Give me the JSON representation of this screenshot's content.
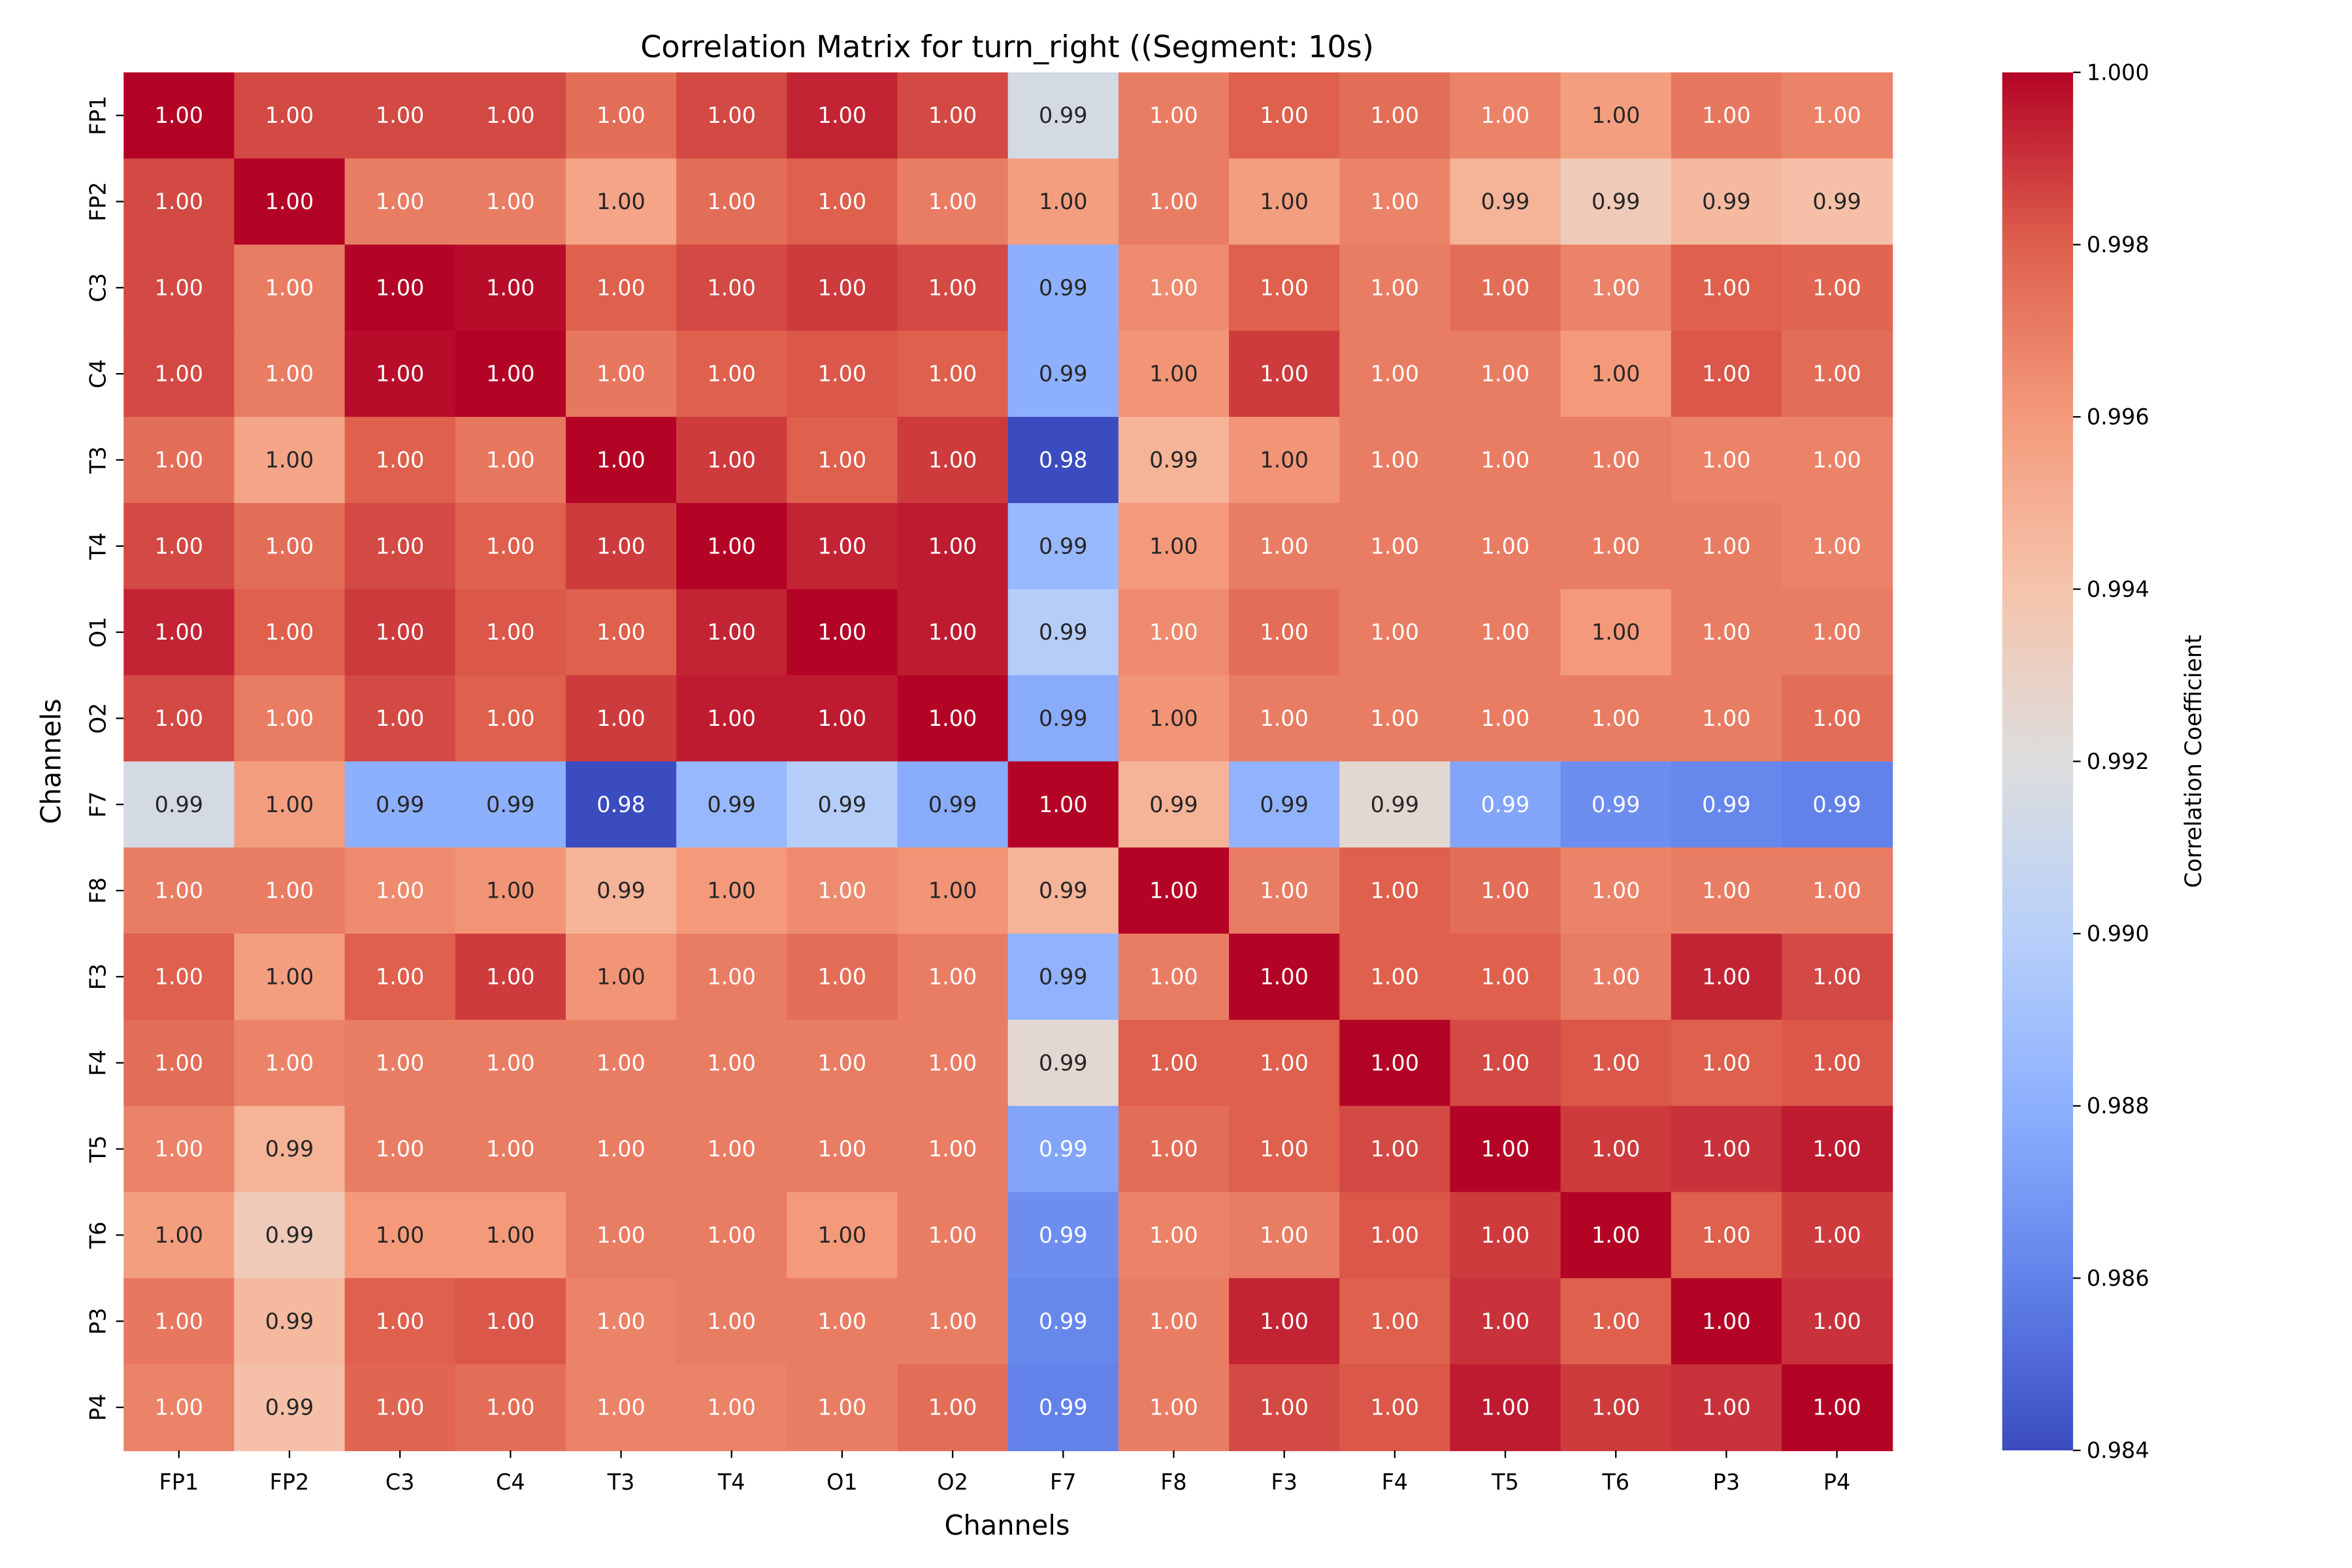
{
  "chart_data": {
    "type": "heatmap",
    "title": "Correlation Matrix for turn_right ((Segment: 10s)",
    "xlabel": "Channels",
    "ylabel": "Channels",
    "colorbar_label": "Correlation Coefficient",
    "colormap": "coolwarm",
    "vmin": 0.984,
    "vmax": 1.0,
    "colorbar_ticks": [
      0.984,
      0.986,
      0.988,
      0.99,
      0.992,
      0.994,
      0.996,
      0.998,
      1.0
    ],
    "annotation_format": "2 decimals",
    "labels": [
      "FP1",
      "FP2",
      "C3",
      "C4",
      "T3",
      "T4",
      "O1",
      "O2",
      "F7",
      "F8",
      "F3",
      "F4",
      "T5",
      "T6",
      "P3",
      "P4"
    ],
    "values": [
      [
        1.0,
        0.9985,
        0.9985,
        0.9985,
        0.9975,
        0.9985,
        0.9993,
        0.9985,
        0.9915,
        0.997,
        0.998,
        0.9975,
        0.9968,
        0.9958,
        0.9972,
        0.9968
      ],
      [
        0.9985,
        1.0,
        0.997,
        0.997,
        0.9955,
        0.9975,
        0.998,
        0.997,
        0.9958,
        0.997,
        0.9958,
        0.9968,
        0.9948,
        0.9935,
        0.9945,
        0.9942
      ],
      [
        0.9985,
        0.997,
        1.0,
        0.9998,
        0.998,
        0.9985,
        0.9988,
        0.9985,
        0.988,
        0.9965,
        0.998,
        0.997,
        0.9975,
        0.9968,
        0.998,
        0.9978
      ],
      [
        0.9985,
        0.997,
        0.9998,
        1.0,
        0.9972,
        0.998,
        0.9982,
        0.998,
        0.988,
        0.9962,
        0.9988,
        0.997,
        0.997,
        0.996,
        0.9982,
        0.9975
      ],
      [
        0.9975,
        0.9955,
        0.998,
        0.9972,
        1.0,
        0.9988,
        0.998,
        0.9988,
        0.984,
        0.9948,
        0.9962,
        0.997,
        0.997,
        0.997,
        0.9968,
        0.9968
      ],
      [
        0.9985,
        0.9975,
        0.9985,
        0.998,
        0.9988,
        1.0,
        0.9993,
        0.9995,
        0.9885,
        0.996,
        0.997,
        0.997,
        0.997,
        0.997,
        0.997,
        0.9968
      ],
      [
        0.9993,
        0.998,
        0.9988,
        0.9982,
        0.998,
        0.9993,
        1.0,
        0.9995,
        0.9898,
        0.9965,
        0.9975,
        0.997,
        0.997,
        0.996,
        0.997,
        0.997
      ],
      [
        0.9985,
        0.997,
        0.9985,
        0.998,
        0.9988,
        0.9995,
        0.9995,
        1.0,
        0.9878,
        0.9962,
        0.997,
        0.997,
        0.997,
        0.997,
        0.997,
        0.9975
      ],
      [
        0.9915,
        0.9958,
        0.988,
        0.988,
        0.984,
        0.9885,
        0.9898,
        0.9878,
        1.0,
        0.9948,
        0.9882,
        0.9925,
        0.9875,
        0.9865,
        0.9862,
        0.986
      ],
      [
        0.997,
        0.997,
        0.9965,
        0.9962,
        0.9948,
        0.996,
        0.9965,
        0.9962,
        0.9948,
        1.0,
        0.997,
        0.998,
        0.9975,
        0.9968,
        0.997,
        0.997
      ],
      [
        0.998,
        0.9958,
        0.998,
        0.9988,
        0.9962,
        0.997,
        0.9975,
        0.997,
        0.9882,
        0.997,
        1.0,
        0.998,
        0.998,
        0.997,
        0.9993,
        0.9985
      ],
      [
        0.9975,
        0.9968,
        0.997,
        0.997,
        0.997,
        0.997,
        0.997,
        0.997,
        0.9925,
        0.998,
        0.998,
        1.0,
        0.9985,
        0.9982,
        0.998,
        0.9982
      ],
      [
        0.9968,
        0.9948,
        0.997,
        0.997,
        0.997,
        0.997,
        0.997,
        0.997,
        0.9875,
        0.9975,
        0.998,
        0.9985,
        1.0,
        0.9988,
        0.999,
        0.9995
      ],
      [
        0.9958,
        0.9935,
        0.996,
        0.996,
        0.997,
        0.997,
        0.996,
        0.997,
        0.9865,
        0.9968,
        0.997,
        0.9982,
        0.9988,
        1.0,
        0.998,
        0.9988
      ],
      [
        0.9972,
        0.9945,
        0.998,
        0.9982,
        0.9968,
        0.997,
        0.997,
        0.997,
        0.9862,
        0.997,
        0.9993,
        0.998,
        0.999,
        0.998,
        1.0,
        0.999
      ],
      [
        0.9968,
        0.9942,
        0.9978,
        0.9975,
        0.9968,
        0.9968,
        0.997,
        0.9975,
        0.986,
        0.997,
        0.9985,
        0.9982,
        0.9995,
        0.9988,
        0.999,
        1.0
      ]
    ]
  }
}
